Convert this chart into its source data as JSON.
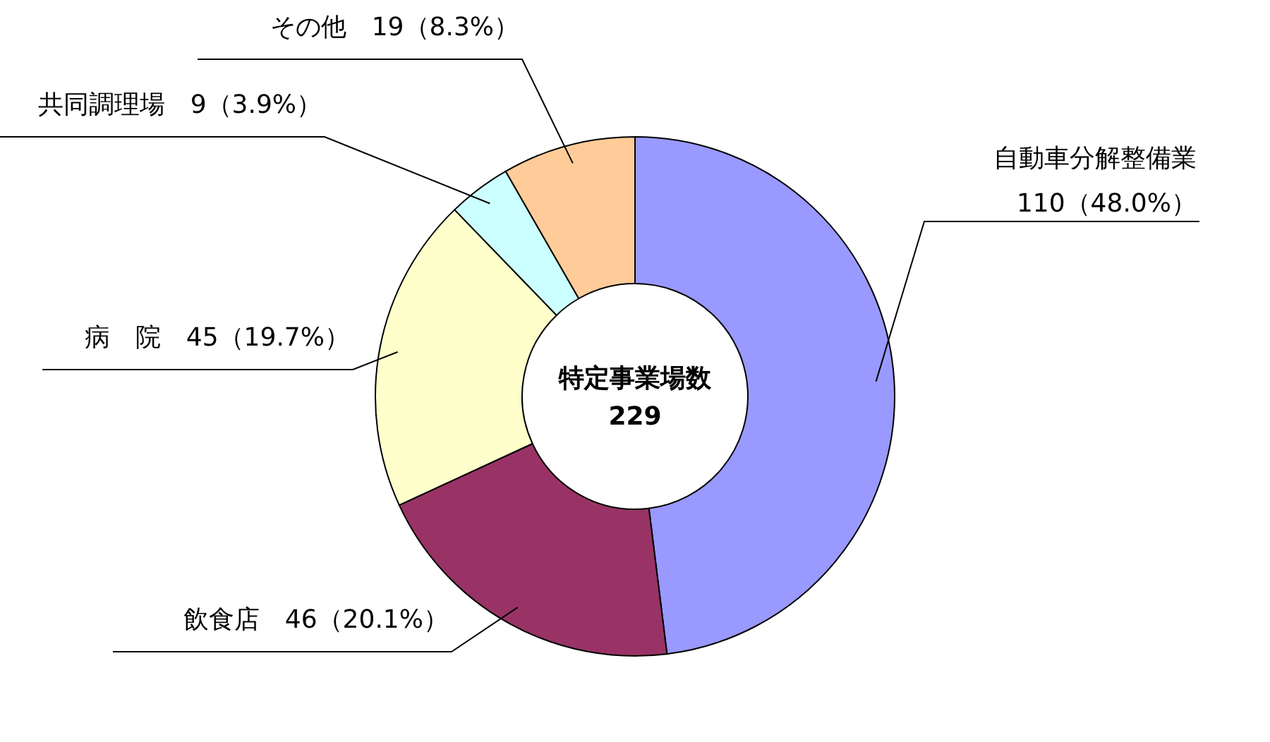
{
  "chart_data": {
    "type": "donut",
    "title": "特定事業場数",
    "annotations": [
      "229"
    ],
    "categories": [
      "自動車分解整備業",
      "飲食店",
      "病　院",
      "共同調理場",
      "その他"
    ],
    "values": [
      110,
      46,
      45,
      9,
      19
    ],
    "value_labels": [
      "110（48.0%）",
      "46（20.1%）",
      "45（19.7%）",
      "9（3.9%）",
      "19（8.3%）"
    ],
    "colors": [
      "#9999ff",
      "#993366",
      "#ffffcc",
      "#ccffff",
      "#ffcc99"
    ]
  }
}
